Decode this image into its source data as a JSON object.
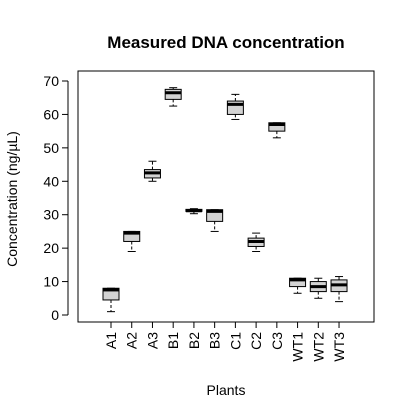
{
  "chart_data": {
    "type": "boxplot",
    "title": "Measured DNA concentration",
    "xlabel": "Plants",
    "ylabel": "Concentration (ng/µL)",
    "ylim": [
      0,
      70
    ],
    "yticks": [
      0,
      10,
      20,
      30,
      40,
      50,
      60,
      70
    ],
    "grid": false,
    "box_fill": "#d3d3d3",
    "categories": [
      "A1",
      "A2",
      "A3",
      "B1",
      "B2",
      "B3",
      "C1",
      "C2",
      "C3",
      "WT1",
      "WT2",
      "WT3"
    ],
    "boxes": [
      {
        "min": 1.0,
        "q1": 4.5,
        "median": 7.5,
        "q3": 8.0,
        "max": 8.0
      },
      {
        "min": 19.0,
        "q1": 22.0,
        "median": 24.5,
        "q3": 25.0,
        "max": 25.0
      },
      {
        "min": 40.0,
        "q1": 41.0,
        "median": 42.5,
        "q3": 43.5,
        "max": 46.0
      },
      {
        "min": 62.5,
        "q1": 64.5,
        "median": 66.5,
        "q3": 67.5,
        "max": 68.0
      },
      {
        "min": 30.3,
        "q1": 31.0,
        "median": 31.2,
        "q3": 31.6,
        "max": 31.8
      },
      {
        "min": 25.0,
        "q1": 28.0,
        "median": 31.0,
        "q3": 31.5,
        "max": 31.5
      },
      {
        "min": 58.5,
        "q1": 60.0,
        "median": 63.0,
        "q3": 64.0,
        "max": 66.0
      },
      {
        "min": 19.0,
        "q1": 20.5,
        "median": 22.0,
        "q3": 23.0,
        "max": 24.5
      },
      {
        "min": 53.0,
        "q1": 55.0,
        "median": 57.0,
        "q3": 57.5,
        "max": 57.5
      },
      {
        "min": 6.5,
        "q1": 8.5,
        "median": 10.5,
        "q3": 11.0,
        "max": 11.0
      },
      {
        "min": 5.0,
        "q1": 7.0,
        "median": 8.5,
        "q3": 10.0,
        "max": 11.0
      },
      {
        "min": 4.0,
        "q1": 7.0,
        "median": 9.0,
        "q3": 10.5,
        "max": 11.5
      }
    ]
  }
}
